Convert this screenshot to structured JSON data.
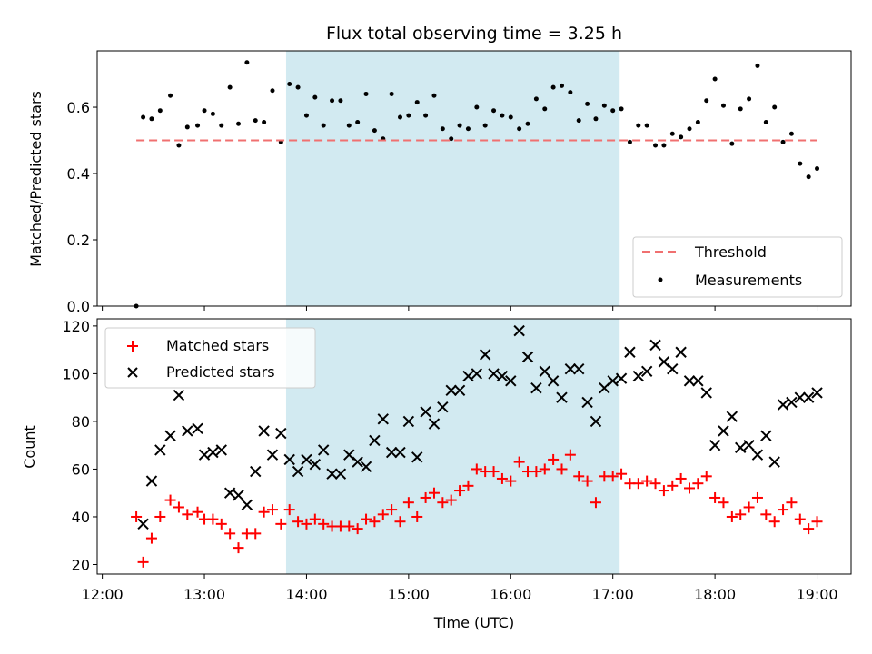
{
  "chart_data": {
    "type": "scatter",
    "title": "Flux total observing time = 3.25 h",
    "xlabel": "Time (UTC)",
    "x_ticks": [
      "12:00",
      "13:00",
      "14:00",
      "15:00",
      "16:00",
      "17:00",
      "18:00",
      "19:00"
    ],
    "shaded_region": {
      "start": "13:48",
      "end": "17:04",
      "color": "#add8e6"
    },
    "panels": [
      {
        "id": "ratio",
        "ylabel": "Matched/Predicted stars",
        "ylim": [
          0,
          0.77
        ],
        "y_ticks": [
          0.0,
          0.2,
          0.4,
          0.6
        ],
        "legend_position": "bottom-right",
        "threshold": {
          "name": "Threshold",
          "value": 0.5,
          "start": "12:20",
          "end": "19:00",
          "color": "#f07070"
        },
        "series": [
          {
            "name": "Measurements",
            "marker": "dot",
            "color": "#000000",
            "x": [
              "12:20",
              "12:24",
              "12:29",
              "12:34",
              "12:40",
              "12:45",
              "12:50",
              "12:56",
              "13:00",
              "13:05",
              "13:10",
              "13:15",
              "13:20",
              "13:25",
              "13:30",
              "13:35",
              "13:40",
              "13:45",
              "13:50",
              "13:55",
              "14:00",
              "14:05",
              "14:10",
              "14:15",
              "14:20",
              "14:25",
              "14:30",
              "14:35",
              "14:40",
              "14:45",
              "14:50",
              "14:55",
              "15:00",
              "15:05",
              "15:10",
              "15:15",
              "15:20",
              "15:25",
              "15:30",
              "15:35",
              "15:40",
              "15:45",
              "15:50",
              "15:55",
              "16:00",
              "16:05",
              "16:10",
              "16:15",
              "16:20",
              "16:25",
              "16:30",
              "16:35",
              "16:40",
              "16:45",
              "16:50",
              "16:55",
              "17:00",
              "17:05",
              "17:10",
              "17:15",
              "17:20",
              "17:25",
              "17:30",
              "17:35",
              "17:40",
              "17:45",
              "17:50",
              "17:55",
              "18:00",
              "18:05",
              "18:10",
              "18:15",
              "18:20",
              "18:25",
              "18:30",
              "18:35",
              "18:40",
              "18:45",
              "18:50",
              "18:55",
              "19:00"
            ],
            "y": [
              0.0,
              0.57,
              0.565,
              0.59,
              0.635,
              0.485,
              0.54,
              0.545,
              0.59,
              0.58,
              0.545,
              0.66,
              0.55,
              0.735,
              0.56,
              0.555,
              0.65,
              0.495,
              0.67,
              0.66,
              0.575,
              0.63,
              0.545,
              0.62,
              0.62,
              0.545,
              0.555,
              0.64,
              0.53,
              0.505,
              0.64,
              0.57,
              0.575,
              0.615,
              0.575,
              0.635,
              0.535,
              0.505,
              0.545,
              0.535,
              0.6,
              0.545,
              0.59,
              0.575,
              0.57,
              0.535,
              0.55,
              0.625,
              0.595,
              0.66,
              0.665,
              0.645,
              0.56,
              0.61,
              0.565,
              0.605,
              0.59,
              0.595,
              0.495,
              0.545,
              0.545,
              0.485,
              0.485,
              0.52,
              0.51,
              0.535,
              0.555,
              0.62,
              0.685,
              0.605,
              0.49,
              0.595,
              0.625,
              0.725,
              0.555,
              0.6,
              0.495,
              0.52,
              0.43,
              0.39,
              0.415
            ]
          }
        ]
      },
      {
        "id": "count",
        "ylabel": "Count",
        "ylim": [
          16,
          123
        ],
        "y_ticks": [
          20,
          40,
          60,
          80,
          100,
          120
        ],
        "legend_position": "top-left",
        "series": [
          {
            "name": "Matched stars",
            "marker": "plus",
            "color": "#ff0000",
            "x": [
              "12:20",
              "12:24",
              "12:29",
              "12:34",
              "12:40",
              "12:45",
              "12:50",
              "12:56",
              "13:00",
              "13:05",
              "13:10",
              "13:15",
              "13:20",
              "13:25",
              "13:30",
              "13:35",
              "13:40",
              "13:45",
              "13:50",
              "13:55",
              "14:00",
              "14:05",
              "14:10",
              "14:15",
              "14:20",
              "14:25",
              "14:30",
              "14:35",
              "14:40",
              "14:45",
              "14:50",
              "14:55",
              "15:00",
              "15:05",
              "15:10",
              "15:15",
              "15:20",
              "15:25",
              "15:30",
              "15:35",
              "15:40",
              "15:45",
              "15:50",
              "15:55",
              "16:00",
              "16:05",
              "16:10",
              "16:15",
              "16:20",
              "16:25",
              "16:30",
              "16:35",
              "16:40",
              "16:45",
              "16:50",
              "16:55",
              "17:00",
              "17:05",
              "17:10",
              "17:15",
              "17:20",
              "17:25",
              "17:30",
              "17:35",
              "17:40",
              "17:45",
              "17:50",
              "17:55",
              "18:00",
              "18:05",
              "18:10",
              "18:15",
              "18:20",
              "18:25",
              "18:30",
              "18:35",
              "18:40",
              "18:45",
              "18:50",
              "18:55",
              "19:00"
            ],
            "y": [
              40,
              21,
              31,
              40,
              47,
              44,
              41,
              42,
              39,
              39,
              37,
              33,
              27,
              33,
              33,
              42,
              43,
              37,
              43,
              38,
              37,
              39,
              37,
              36,
              36,
              36,
              35,
              39,
              38,
              41,
              43,
              38,
              46,
              40,
              48,
              50,
              46,
              47,
              51,
              53,
              60,
              59,
              59,
              56,
              55,
              63,
              59,
              59,
              60,
              64,
              60,
              66,
              57,
              55,
              46,
              57,
              57,
              58,
              54,
              54,
              55,
              54,
              51,
              53,
              56,
              52,
              54,
              57,
              48,
              46,
              40,
              41,
              44,
              48,
              41,
              38,
              43,
              46,
              39,
              35,
              38
            ]
          },
          {
            "name": "Predicted stars",
            "marker": "x",
            "color": "#000000",
            "x": [
              "12:24",
              "12:29",
              "12:34",
              "12:40",
              "12:45",
              "12:50",
              "12:56",
              "13:00",
              "13:05",
              "13:10",
              "13:15",
              "13:20",
              "13:25",
              "13:30",
              "13:35",
              "13:40",
              "13:45",
              "13:50",
              "13:55",
              "14:00",
              "14:05",
              "14:10",
              "14:15",
              "14:20",
              "14:25",
              "14:30",
              "14:35",
              "14:40",
              "14:45",
              "14:50",
              "14:55",
              "15:00",
              "15:05",
              "15:10",
              "15:15",
              "15:20",
              "15:25",
              "15:30",
              "15:35",
              "15:40",
              "15:45",
              "15:50",
              "15:55",
              "16:00",
              "16:05",
              "16:10",
              "16:15",
              "16:20",
              "16:25",
              "16:30",
              "16:35",
              "16:40",
              "16:45",
              "16:50",
              "16:55",
              "17:00",
              "17:05",
              "17:10",
              "17:15",
              "17:20",
              "17:25",
              "17:30",
              "17:35",
              "17:40",
              "17:45",
              "17:50",
              "17:55",
              "18:00",
              "18:05",
              "18:10",
              "18:15",
              "18:20",
              "18:25",
              "18:30",
              "18:35",
              "18:40",
              "18:45",
              "18:50",
              "18:55",
              "19:00"
            ],
            "y": [
              37,
              55,
              68,
              74,
              91,
              76,
              77,
              66,
              67,
              68,
              50,
              49,
              45,
              59,
              76,
              66,
              75,
              64,
              59,
              64,
              62,
              68,
              58,
              58,
              66,
              63,
              61,
              72,
              81,
              67,
              67,
              80,
              65,
              84,
              79,
              86,
              93,
              93,
              99,
              100,
              108,
              100,
              99,
              97,
              118,
              107,
              94,
              101,
              97,
              90,
              102,
              102,
              88,
              80,
              94,
              97,
              98,
              109,
              99,
              101,
              112,
              105,
              102,
              109,
              97,
              97,
              92,
              70,
              76,
              82,
              69,
              70,
              66,
              74,
              63,
              87,
              88,
              90,
              90,
              92
            ]
          }
        ]
      }
    ]
  }
}
